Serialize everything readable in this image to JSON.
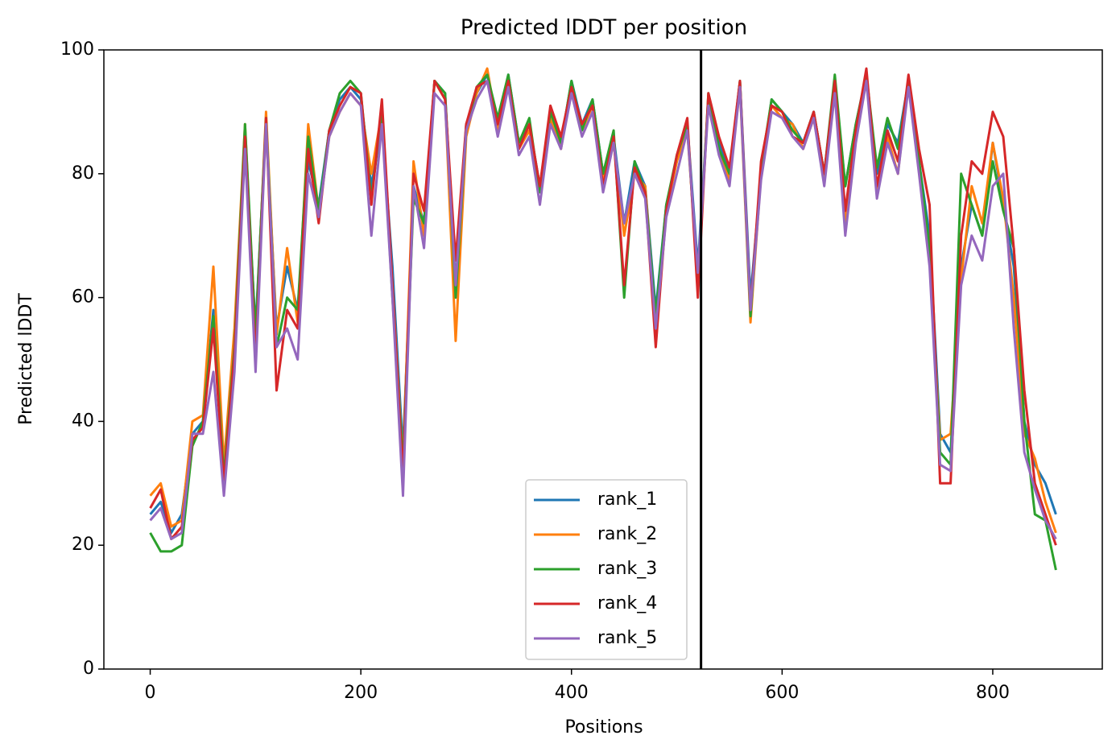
{
  "chart_data": {
    "type": "line",
    "title": "Predicted lDDT per position",
    "xlabel": "Positions",
    "ylabel": "Predicted lDDT",
    "x": [
      0,
      10,
      20,
      30,
      40,
      50,
      60,
      70,
      80,
      90,
      100,
      110,
      120,
      130,
      140,
      150,
      160,
      170,
      180,
      190,
      200,
      210,
      220,
      230,
      240,
      250,
      260,
      270,
      280,
      290,
      300,
      310,
      320,
      330,
      340,
      350,
      360,
      370,
      380,
      390,
      400,
      410,
      420,
      430,
      440,
      450,
      460,
      470,
      480,
      490,
      500,
      510,
      520,
      530,
      540,
      550,
      560,
      570,
      580,
      590,
      600,
      610,
      620,
      630,
      640,
      650,
      660,
      670,
      680,
      690,
      700,
      710,
      720,
      730,
      740,
      750,
      760,
      770,
      780,
      790,
      800,
      810,
      820,
      830,
      840,
      850,
      860
    ],
    "series": [
      {
        "name": "rank_1",
        "color": "#1f77b4",
        "values": [
          25,
          27,
          22,
          25,
          38,
          40,
          58,
          30,
          50,
          85,
          55,
          88,
          55,
          65,
          58,
          82,
          75,
          87,
          92,
          94,
          92,
          78,
          88,
          65,
          35,
          78,
          72,
          95,
          93,
          62,
          88,
          93,
          96,
          88,
          96,
          85,
          88,
          78,
          90,
          85,
          95,
          88,
          92,
          80,
          86,
          72,
          82,
          78,
          58,
          75,
          82,
          88,
          65,
          92,
          85,
          80,
          95,
          60,
          80,
          92,
          90,
          88,
          85,
          90,
          80,
          95,
          78,
          88,
          96,
          80,
          88,
          85,
          95,
          82,
          70,
          38,
          35,
          65,
          75,
          70,
          85,
          75,
          65,
          40,
          33,
          30,
          25
        ]
      },
      {
        "name": "rank_2",
        "color": "#ff7f0e",
        "values": [
          28,
          30,
          23,
          24,
          40,
          41,
          65,
          33,
          55,
          88,
          52,
          90,
          54,
          68,
          56,
          88,
          74,
          86,
          90,
          93,
          91,
          80,
          90,
          62,
          33,
          82,
          70,
          95,
          92,
          53,
          86,
          93,
          97,
          87,
          95,
          84,
          87,
          77,
          89,
          84,
          94,
          87,
          91,
          79,
          85,
          70,
          80,
          78,
          56,
          74,
          82,
          87,
          63,
          92,
          84,
          79,
          94,
          56,
          80,
          91,
          89,
          88,
          84,
          89,
          79,
          94,
          72,
          86,
          96,
          77,
          86,
          80,
          95,
          81,
          66,
          37,
          38,
          63,
          78,
          72,
          85,
          76,
          60,
          38,
          34,
          27,
          22
        ]
      },
      {
        "name": "rank_3",
        "color": "#2ca02c",
        "values": [
          22,
          19,
          19,
          20,
          36,
          40,
          57,
          31,
          52,
          88,
          54,
          89,
          52,
          60,
          58,
          86,
          74,
          87,
          93,
          95,
          93,
          76,
          90,
          60,
          33,
          76,
          72,
          95,
          93,
          60,
          87,
          94,
          96,
          89,
          96,
          85,
          89,
          77,
          90,
          85,
          95,
          87,
          92,
          80,
          87,
          60,
          82,
          77,
          57,
          75,
          83,
          88,
          62,
          93,
          84,
          80,
          95,
          57,
          81,
          92,
          90,
          87,
          85,
          90,
          80,
          96,
          78,
          88,
          96,
          81,
          89,
          84,
          95,
          82,
          68,
          35,
          33,
          80,
          75,
          70,
          82,
          74,
          68,
          40,
          25,
          24,
          16
        ]
      },
      {
        "name": "rank_4",
        "color": "#d62728",
        "values": [
          26,
          29,
          21,
          23,
          37,
          39,
          55,
          30,
          51,
          86,
          50,
          89,
          45,
          58,
          55,
          84,
          72,
          87,
          91,
          94,
          93,
          75,
          92,
          62,
          31,
          80,
          74,
          95,
          92,
          66,
          88,
          94,
          95,
          88,
          95,
          84,
          88,
          78,
          91,
          86,
          94,
          88,
          91,
          78,
          86,
          62,
          81,
          77,
          52,
          74,
          83,
          89,
          60,
          93,
          86,
          81,
          95,
          58,
          82,
          91,
          90,
          86,
          85,
          90,
          80,
          95,
          74,
          87,
          97,
          78,
          87,
          82,
          96,
          84,
          75,
          30,
          30,
          70,
          82,
          80,
          90,
          86,
          68,
          45,
          30,
          25,
          20
        ]
      },
      {
        "name": "rank_5",
        "color": "#9467bd",
        "values": [
          24,
          26,
          21,
          22,
          38,
          38,
          48,
          28,
          48,
          84,
          48,
          88,
          52,
          55,
          50,
          80,
          73,
          86,
          90,
          93,
          91,
          70,
          88,
          60,
          28,
          78,
          68,
          93,
          91,
          62,
          87,
          92,
          95,
          86,
          94,
          83,
          86,
          75,
          88,
          84,
          93,
          86,
          90,
          77,
          85,
          72,
          80,
          76,
          55,
          73,
          80,
          87,
          64,
          91,
          83,
          78,
          94,
          58,
          79,
          90,
          89,
          86,
          84,
          89,
          78,
          93,
          70,
          85,
          95,
          76,
          85,
          80,
          94,
          80,
          65,
          33,
          32,
          62,
          70,
          66,
          78,
          80,
          55,
          35,
          29,
          24,
          21
        ]
      }
    ],
    "xlim": [
      -44,
      904
    ],
    "ylim": [
      0,
      100
    ],
    "xticks": [
      0,
      200,
      400,
      600,
      800
    ],
    "yticks": [
      0,
      20,
      40,
      60,
      80,
      100
    ],
    "vlines": [
      523
    ],
    "legend": "lower center"
  }
}
